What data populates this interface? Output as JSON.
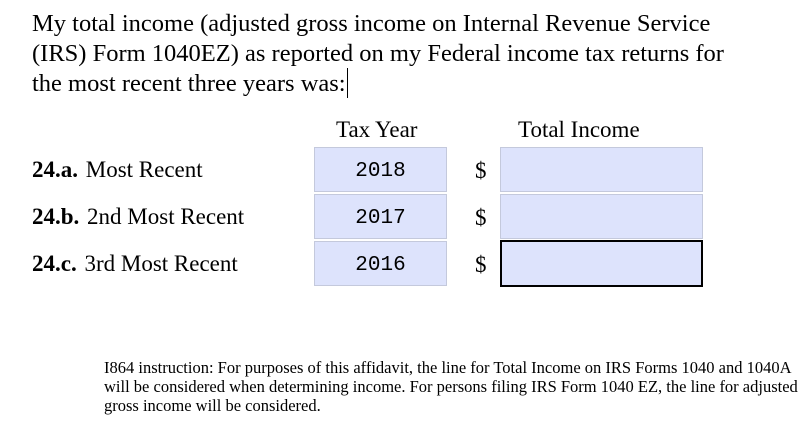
{
  "intro": {
    "text": "My total income (adjusted gross income on Internal Revenue Service (IRS) Form 1040EZ) as reported on my Federal income tax returns for the most recent three years was:"
  },
  "table": {
    "header_year": "Tax Year",
    "header_income": "Total Income",
    "currency_symbol": "$",
    "rows": [
      {
        "number": "24.a.",
        "label": "Most Recent",
        "year": "2018",
        "income": ""
      },
      {
        "number": "24.b.",
        "label": "2nd Most Recent",
        "year": "2017",
        "income": ""
      },
      {
        "number": "24.c.",
        "label": "3rd Most Recent",
        "year": "2016",
        "income": ""
      }
    ]
  },
  "footnote": {
    "text": "I864 instruction: For purposes of this affidavit, the line for Total Income on IRS Forms 1040 and 1040A will be considered when determining income. For persons filing IRS Form 1040 EZ, the line for adjusted gross income will be considered."
  },
  "colors": {
    "field_background": "#dde3fc",
    "field_border": "#c4c9dc",
    "focused_border": "#000000"
  }
}
